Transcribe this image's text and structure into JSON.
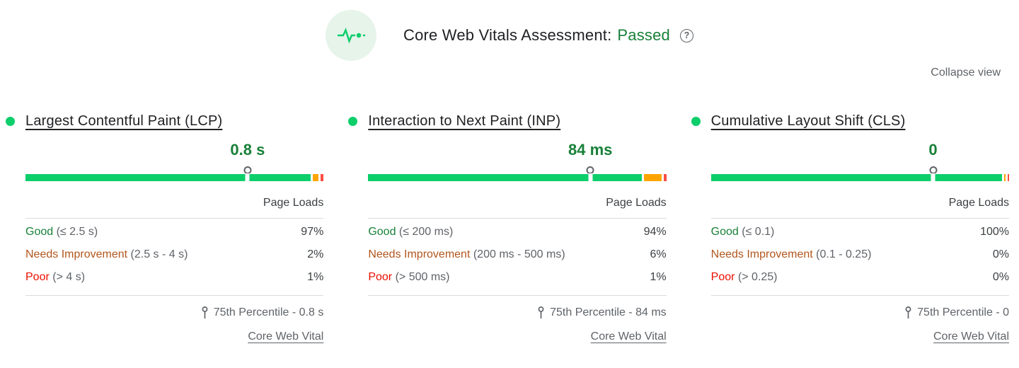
{
  "header": {
    "title": "Core Web Vitals Assessment:",
    "status": "Passed",
    "help_label": "?",
    "collapse_label": "Collapse view"
  },
  "shared": {
    "page_loads_label": "Page Loads",
    "link_label": "Core Web Vital"
  },
  "palette": {
    "bar_good": "#0cce6b",
    "bar_average": "#ffa400",
    "bar_poor": "#ff4e42",
    "text_good": "#188038",
    "text_average": "#b2561d",
    "text_poor": "#eb0f00",
    "muted": "#5f6368",
    "dark": "#202124",
    "divider": "#dadce0",
    "icon_bg": "#e6f4ea"
  },
  "metrics": [
    {
      "title": "Largest Contentful Paint (LCP)",
      "value": "0.8 s",
      "marker_position_pct": 74.5,
      "distribution": {
        "good": 97,
        "needs_improvement": 2,
        "poor": 1
      },
      "rows": [
        {
          "label": "Good",
          "range": "(≤ 2.5 s)",
          "pct": "97%"
        },
        {
          "label": "Needs Improvement",
          "range": "(2.5 s - 4 s)",
          "pct": "2%"
        },
        {
          "label": "Poor",
          "range": "(> 4 s)",
          "pct": "1%"
        }
      ],
      "percentile_label": "75th Percentile - 0.8 s"
    },
    {
      "title": "Interaction to Next Paint (INP)",
      "value": "84 ms",
      "marker_position_pct": 74.5,
      "distribution": {
        "good": 94,
        "needs_improvement": 6,
        "poor": 1
      },
      "rows": [
        {
          "label": "Good",
          "range": "(≤ 200 ms)",
          "pct": "94%"
        },
        {
          "label": "Needs Improvement",
          "range": "(200 ms - 500 ms)",
          "pct": "6%"
        },
        {
          "label": "Poor",
          "range": "(> 500 ms)",
          "pct": "1%"
        }
      ],
      "percentile_label": "75th Percentile - 84 ms"
    },
    {
      "title": "Cumulative Layout Shift (CLS)",
      "value": "0",
      "marker_position_pct": 74.5,
      "distribution": {
        "good": 100,
        "needs_improvement": 0,
        "poor": 0
      },
      "rows": [
        {
          "label": "Good",
          "range": "(≤ 0.1)",
          "pct": "100%"
        },
        {
          "label": "Needs Improvement",
          "range": "(0.1 - 0.25)",
          "pct": "0%"
        },
        {
          "label": "Poor",
          "range": "(> 0.25)",
          "pct": "0%"
        }
      ],
      "percentile_label": "75th Percentile - 0"
    }
  ]
}
